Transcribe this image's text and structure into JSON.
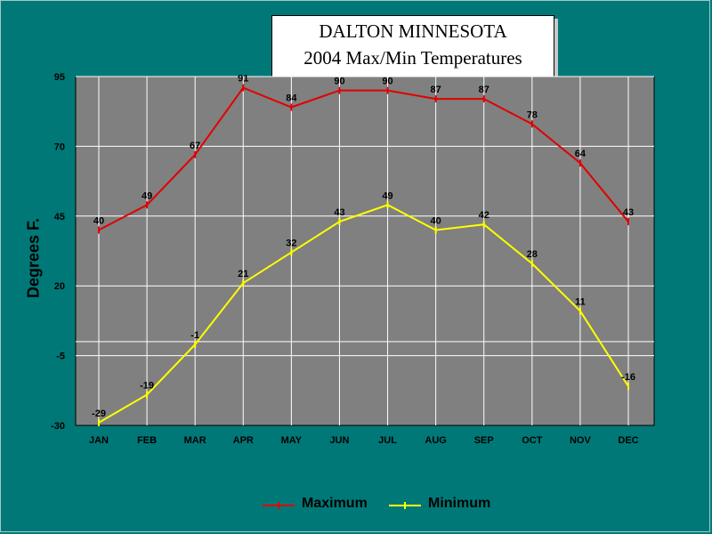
{
  "chart_data": {
    "type": "line",
    "title_line1": "DALTON MINNESOTA",
    "title_line2": "2004 Max/Min Temperatures",
    "ylabel": "Degrees F.",
    "categories": [
      "JAN",
      "FEB",
      "MAR",
      "APR",
      "MAY",
      "JUN",
      "JUL",
      "AUG",
      "SEP",
      "OCT",
      "NOV",
      "DEC"
    ],
    "yticks": [
      95,
      70,
      45,
      20,
      -5,
      -30
    ],
    "ylim": [
      -30,
      95
    ],
    "series": [
      {
        "name": "Maximum",
        "color": "#e00000",
        "values": [
          40,
          49,
          67,
          91,
          84,
          90,
          90,
          87,
          87,
          78,
          64,
          43
        ]
      },
      {
        "name": "Minimum",
        "color": "#ffff00",
        "values": [
          -29,
          -19,
          -1,
          21,
          32,
          43,
          49,
          40,
          42,
          28,
          11,
          -16
        ]
      }
    ],
    "grid": true,
    "plot_background": "#808080",
    "legend_position": "bottom"
  }
}
